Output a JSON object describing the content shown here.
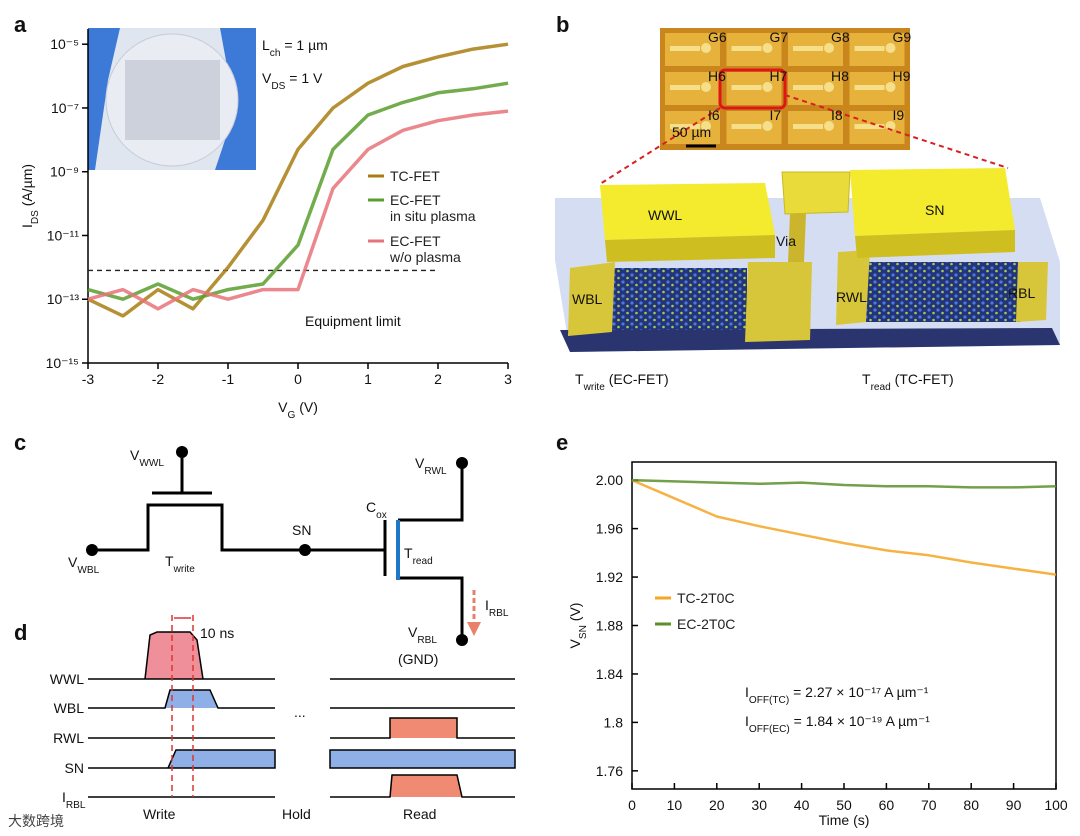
{
  "panel_labels": [
    "a",
    "b",
    "c",
    "d",
    "e"
  ],
  "chart_data": [
    {
      "type": "line",
      "ylog": true,
      "xlabel": [
        "V",
        "G",
        " (V)"
      ],
      "ylabel": [
        "I",
        "DS",
        " (A/µm)"
      ],
      "annotations": [
        [
          "L",
          "ch",
          " = 1 µm"
        ],
        [
          "V",
          "DS",
          " = 1 V"
        ]
      ],
      "x": [
        -3,
        -2.5,
        -2,
        -1.5,
        -1,
        -0.5,
        0,
        0.5,
        1,
        1.5,
        2,
        2.5,
        3
      ],
      "series": [
        {
          "name": "TC-FET",
          "color": "#a87c12",
          "values": [
            1e-13,
            3e-14,
            2e-13,
            5e-14,
            1e-12,
            3e-11,
            5e-09,
            1e-07,
            6e-07,
            2e-06,
            4e-06,
            7e-06,
            1e-05
          ]
        },
        {
          "name": "EC-FET\nin situ plasma",
          "color": "#5b9e2e",
          "values": [
            2e-13,
            1e-13,
            3e-13,
            1e-13,
            2e-13,
            3e-13,
            5e-12,
            5e-09,
            6e-08,
            1.5e-07,
            3e-07,
            4e-07,
            6e-07
          ]
        },
        {
          "name": "EC-FET\nw/o plasma",
          "color": "#e8737a",
          "values": [
            1e-13,
            2e-13,
            5e-14,
            2e-13,
            1e-13,
            2e-13,
            2e-13,
            3e-10,
            5e-09,
            2e-08,
            4e-08,
            6e-08,
            8e-08
          ]
        }
      ],
      "equipment_limit": {
        "label": "Equipment limit",
        "value": 8e-13,
        "x": [
          -3,
          2
        ]
      },
      "xlim": [
        -3,
        3
      ],
      "xticks": [
        -3,
        -2,
        -1,
        0,
        1,
        2,
        3
      ],
      "ylim": [
        1e-15,
        3e-05
      ],
      "yticks": [
        {
          "value": 1e-15,
          "label": "10⁻¹⁵"
        },
        {
          "value": 1e-13,
          "label": "10⁻¹³"
        },
        {
          "value": 1e-11,
          "label": "10⁻¹¹"
        },
        {
          "value": 1e-09,
          "label": "10⁻⁹"
        },
        {
          "value": 1e-07,
          "label": "10⁻⁷"
        },
        {
          "value": 1e-05,
          "label": "10⁻⁵"
        }
      ]
    },
    {
      "type": "line",
      "ylog": false,
      "xlabel": [
        "Time (s)"
      ],
      "ylabel": [
        "V",
        "SN",
        " (V)"
      ],
      "annotations": [
        [
          "I",
          "OFF(TC)",
          " = 2.27 × 10⁻¹⁷ A µm⁻¹"
        ],
        [
          "I",
          "OFF(EC)",
          " = 1.84 × 10⁻¹⁹ A µm⁻¹"
        ]
      ],
      "x": [
        0,
        10,
        20,
        30,
        40,
        50,
        60,
        70,
        80,
        90,
        100
      ],
      "series": [
        {
          "name": "TC-2T0C",
          "color": "#f5a623",
          "values": [
            2.0,
            1.985,
            1.97,
            1.962,
            1.955,
            1.948,
            1.942,
            1.938,
            1.932,
            1.927,
            1.922
          ]
        },
        {
          "name": "EC-2T0C",
          "color": "#5a8f2a",
          "values": [
            2.0,
            1.999,
            1.998,
            1.997,
            1.998,
            1.996,
            1.995,
            1.995,
            1.994,
            1.994,
            1.995
          ]
        }
      ],
      "xlim": [
        0,
        100
      ],
      "xticks": [
        0,
        10,
        20,
        30,
        40,
        50,
        60,
        70,
        80,
        90,
        100
      ],
      "ylim": [
        1.745,
        2.015
      ],
      "yticks": [
        {
          "value": 1.76,
          "label": "1.76"
        },
        1.8,
        1.84,
        1.88,
        1.92,
        1.96,
        {
          "value": 2,
          "label": "2.00"
        }
      ]
    }
  ],
  "panel_b": {
    "scale_bar": "50 µm",
    "chip_labels": [
      "G6",
      "G7",
      "G8",
      "G9",
      "H6",
      "H7",
      "H8",
      "H9",
      "I6",
      "I7",
      "I8",
      "I9"
    ],
    "wwl": "WWL",
    "sn": "SN",
    "via": "Via",
    "wbl": "WBL",
    "rwl": "RWL",
    "rbl": "RBL",
    "t_write": [
      "T",
      "write",
      " (EC-FET)"
    ],
    "t_read": [
      "T",
      "read",
      " (TC-FET)"
    ]
  },
  "panel_c": {
    "v_wwl": [
      "V",
      "WWL"
    ],
    "v_wbl": [
      "V",
      "WBL"
    ],
    "t_write": [
      "T",
      "write"
    ],
    "sn": "SN",
    "c_ox": [
      "C",
      "ox"
    ],
    "t_read": [
      "T",
      "read"
    ],
    "v_rwl": [
      "V",
      "RWL"
    ],
    "v_rbl": [
      "V",
      "RBL"
    ],
    "gnd": "(GND)",
    "i_rbl": [
      "I",
      "RBL"
    ]
  },
  "panel_d": {
    "signals": [
      "WWL",
      "WBL",
      "RWL",
      "SN"
    ],
    "i_rbl": [
      "I",
      "RBL"
    ],
    "pulse_width": "10 ns",
    "ellipsis": "...",
    "phases": [
      "Write",
      "Hold",
      "Read"
    ]
  },
  "watermark": "大数跨境"
}
